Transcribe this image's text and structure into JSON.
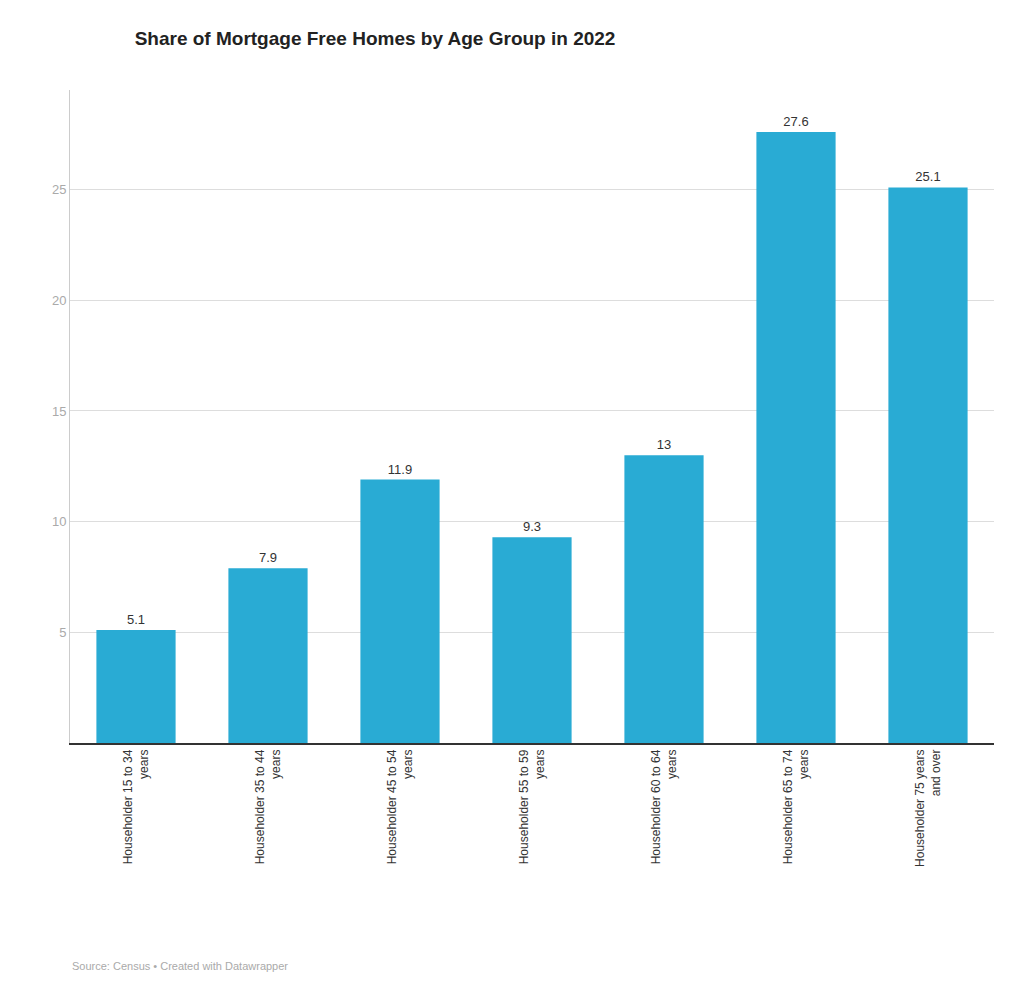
{
  "chart_data": {
    "type": "bar",
    "title": "Share of Mortgage Free Homes by Age Group in 2022",
    "categories": [
      "Householder 15 to 34\nyears",
      "Householder 35 to 44\nyears",
      "Householder 45 to 54\nyears",
      "Householder 55 to 59\nyears",
      "Householder 60 to 64\nyears",
      "Householder 65 to 74\nyears",
      "Householder 75 years\nand over"
    ],
    "values": [
      5.1,
      7.9,
      11.9,
      9.3,
      13,
      27.6,
      25.1
    ],
    "color": "#29ABD4",
    "ylim": [
      0,
      29.5
    ],
    "yticks": [
      5,
      10,
      15,
      20,
      25
    ],
    "grid": true,
    "data_labels": true,
    "annotations": [
      "Source: Census • Created with Datawrapper"
    ]
  }
}
